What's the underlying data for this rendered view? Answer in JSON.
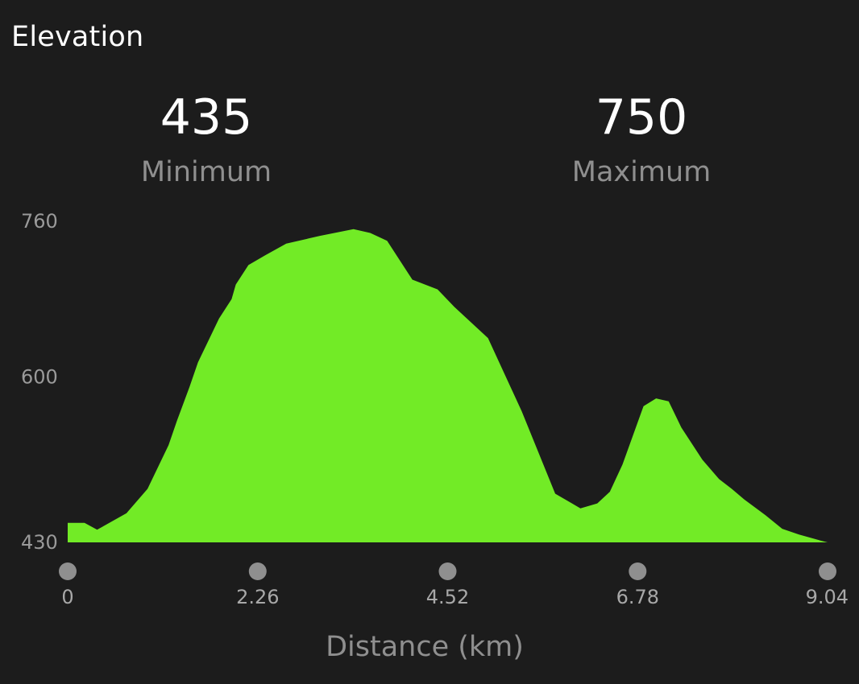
{
  "header": {
    "title": "Elevation"
  },
  "stats": {
    "minimum": {
      "value": "435",
      "label": "Minimum"
    },
    "maximum": {
      "value": "750",
      "label": "Maximum"
    }
  },
  "chart_data": {
    "type": "area",
    "title": "Elevation",
    "xlabel": "Distance (km)",
    "ylabel": "",
    "xlim": [
      0,
      9.04
    ],
    "ylim": [
      430,
      760
    ],
    "x_ticks": [
      "0",
      "2.26",
      "4.52",
      "6.78",
      "9.04"
    ],
    "y_ticks": [
      "430",
      "600",
      "760"
    ],
    "grid": false,
    "fill_color": "#72eb26",
    "background_color": "#1c1c1c",
    "series": [
      {
        "x": [
          0,
          0.2,
          0.35,
          0.7,
          0.95,
          1.2,
          1.3,
          1.45,
          1.55,
          1.8,
          1.95,
          2.0,
          2.15,
          2.35,
          2.6,
          3.0,
          3.4,
          3.6,
          3.8,
          4.1,
          4.4,
          4.6,
          5.0,
          5.4,
          5.8,
          6.0,
          6.1,
          6.3,
          6.45,
          6.6,
          6.85,
          7.0,
          7.15,
          7.3,
          7.55,
          7.75,
          7.9,
          8.05,
          8.3,
          8.5,
          8.7,
          8.95,
          9.04
        ],
        "y": [
          450,
          450,
          443,
          460,
          485,
          530,
          555,
          590,
          615,
          660,
          680,
          695,
          715,
          725,
          737,
          745,
          752,
          748,
          740,
          700,
          690,
          672,
          640,
          565,
          480,
          470,
          465,
          470,
          482,
          510,
          570,
          578,
          575,
          548,
          515,
          495,
          485,
          474,
          458,
          444,
          438,
          432,
          430
        ]
      }
    ]
  }
}
